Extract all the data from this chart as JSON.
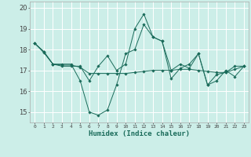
{
  "xlabel": "Humidex (Indice chaleur)",
  "ylabel": "",
  "background_color": "#cceee8",
  "grid_color": "#ffffff",
  "line_color": "#1a6b5a",
  "xlim": [
    -0.5,
    23.5
  ],
  "ylim": [
    14.5,
    20.3
  ],
  "yticks": [
    15,
    16,
    17,
    18,
    19,
    20
  ],
  "xticks": [
    0,
    1,
    2,
    3,
    4,
    5,
    6,
    7,
    8,
    9,
    10,
    11,
    12,
    13,
    14,
    15,
    16,
    17,
    18,
    19,
    20,
    21,
    22,
    23
  ],
  "series1": [
    18.3,
    17.9,
    17.3,
    17.2,
    17.2,
    17.2,
    16.5,
    17.2,
    17.7,
    17.0,
    17.3,
    19.0,
    19.7,
    18.6,
    18.4,
    17.0,
    17.3,
    17.1,
    17.8,
    16.3,
    16.8,
    16.9,
    17.2,
    17.2
  ],
  "series2": [
    18.3,
    17.9,
    17.3,
    17.3,
    17.3,
    16.5,
    15.0,
    14.85,
    15.1,
    16.3,
    17.8,
    18.0,
    19.2,
    18.6,
    18.4,
    16.6,
    17.1,
    17.3,
    17.8,
    16.3,
    16.5,
    17.0,
    16.7,
    17.2
  ],
  "series3": [
    18.3,
    17.85,
    17.3,
    17.25,
    17.25,
    17.15,
    16.85,
    16.85,
    16.85,
    16.85,
    16.85,
    16.9,
    16.95,
    17.0,
    17.0,
    17.0,
    17.05,
    17.05,
    17.0,
    16.95,
    16.9,
    16.9,
    17.05,
    17.2
  ]
}
